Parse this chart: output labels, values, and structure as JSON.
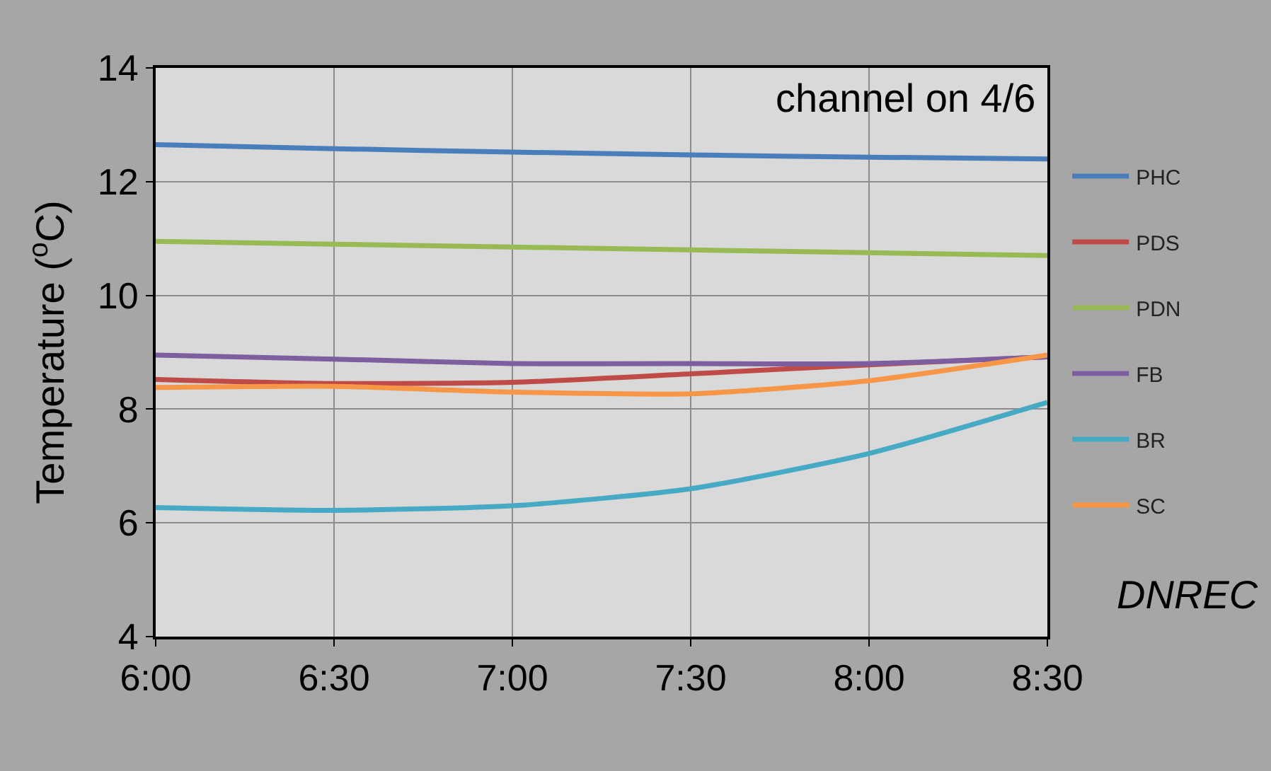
{
  "chart_data": {
    "type": "line",
    "ylabel": "Temperature ($^{o}$C)",
    "x": [
      6,
      6.5,
      7,
      7.5,
      8,
      8.5
    ],
    "xlim": [
      6,
      8.5
    ],
    "xticks": [
      {
        "value": 6,
        "label": "6:00"
      },
      {
        "value": 6.5,
        "label": "6:30"
      },
      {
        "value": 7,
        "label": "7:00"
      },
      {
        "value": 7.5,
        "label": "7:30"
      },
      {
        "value": 8,
        "label": "8:00"
      },
      {
        "value": 8.5,
        "label": "8:30"
      }
    ],
    "ylim": [
      4,
      14
    ],
    "yticks": [
      4,
      6,
      8,
      10,
      12,
      14
    ],
    "grid": true,
    "legend": "right",
    "marker": "none",
    "line_style": "solid",
    "series": [
      {
        "name": "PHC",
        "color": "#4a7ebb",
        "values": [
          12.65,
          12.58,
          12.52,
          12.47,
          12.43,
          12.4
        ]
      },
      {
        "name": "PDS",
        "color": "#be4b48",
        "values": [
          8.52,
          8.45,
          8.47,
          8.62,
          8.78,
          8.92
        ]
      },
      {
        "name": "PDN",
        "color": "#98b954",
        "values": [
          10.95,
          10.9,
          10.85,
          10.8,
          10.75,
          10.7
        ]
      },
      {
        "name": "FB",
        "color": "#7d5fa0",
        "values": [
          8.95,
          8.88,
          8.8,
          8.8,
          8.8,
          8.92
        ]
      },
      {
        "name": "BR",
        "color": "#46aac5",
        "values": [
          6.27,
          6.22,
          6.3,
          6.6,
          7.22,
          8.12
        ]
      },
      {
        "name": "SC",
        "color": "#f79646",
        "values": [
          8.38,
          8.4,
          8.3,
          8.27,
          8.5,
          8.95
        ]
      }
    ],
    "annotations": [
      "channel on 4/6",
      "DNREC"
    ]
  }
}
